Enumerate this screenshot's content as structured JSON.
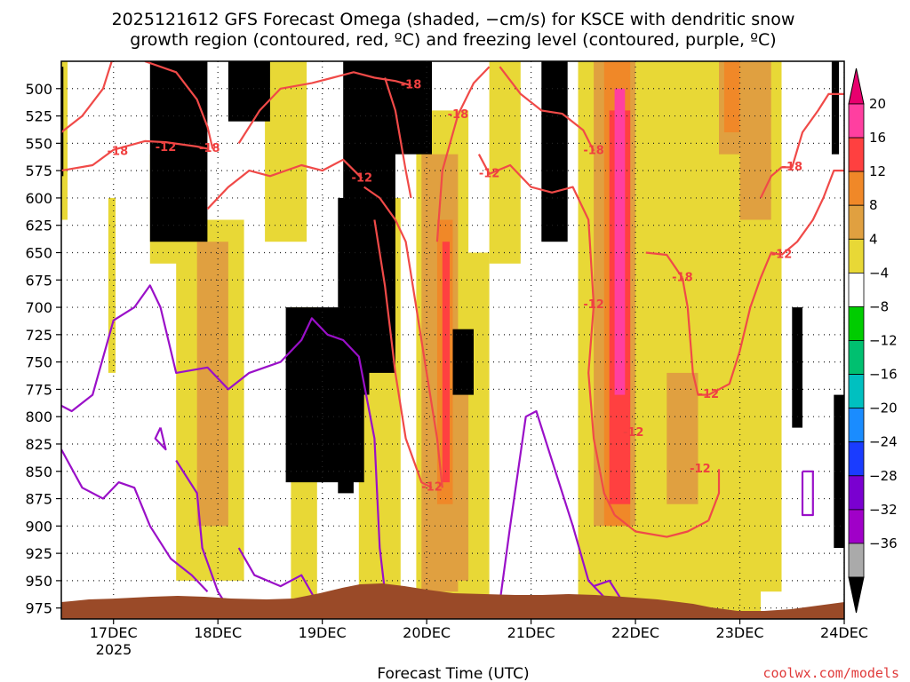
{
  "chart_data": {
    "type": "heatmap",
    "title_lines": [
      "2025121612 GFS Forecast Omega (shaded, −cm/s) for KSCE with dendritic snow",
      "growth region (contoured, red, ºC) and freezing level (contoured, purple, ºC)"
    ],
    "xlabel": "Forecast Time (UTC)",
    "x_ticks": [
      "17DEC",
      "18DEC",
      "19DEC",
      "20DEC",
      "21DEC",
      "22DEC",
      "23DEC",
      "24DEC"
    ],
    "x_year_label": "2025",
    "x_range_days": [
      16.5,
      24.0
    ],
    "y_ticks": [
      500,
      525,
      550,
      575,
      600,
      625,
      650,
      675,
      700,
      725,
      750,
      775,
      800,
      825,
      850,
      875,
      900,
      925,
      950,
      975
    ],
    "y_range_hpa": [
      475,
      985
    ],
    "colorbar_labels": [
      "20",
      "16",
      "12",
      "8",
      "4",
      "−4",
      "−8",
      "−12",
      "−16",
      "−20",
      "−24",
      "−28",
      "−32",
      "−36"
    ],
    "colorbar_colors": [
      "#ff3fa0",
      "#ff4040",
      "#f08828",
      "#e0a040",
      "#e8d836",
      "#ffffff",
      "#00cc00",
      "#00c070",
      "#00c0c0",
      "#1a8cff",
      "#1a3cff",
      "#7a00d0",
      "#a000c8",
      "#aaaaaa"
    ],
    "colorbar_top_color": "#e8006e",
    "colorbar_bottom_color": "#000000",
    "contour_labels_dgz": [
      {
        "text": "-18",
        "x": 17.04,
        "p": 558
      },
      {
        "text": "-12",
        "x": 17.5,
        "p": 554
      },
      {
        "text": "-18",
        "x": 17.92,
        "p": 555
      },
      {
        "text": "-12",
        "x": 19.38,
        "p": 582
      },
      {
        "text": "-18",
        "x": 19.85,
        "p": 497
      },
      {
        "text": "-18",
        "x": 20.3,
        "p": 524
      },
      {
        "text": "-12",
        "x": 20.6,
        "p": 578
      },
      {
        "text": "-18",
        "x": 21.6,
        "p": 557
      },
      {
        "text": "-12",
        "x": 21.6,
        "p": 698
      },
      {
        "text": "-12",
        "x": 20.05,
        "p": 865
      },
      {
        "text": "-12",
        "x": 21.98,
        "p": 815
      },
      {
        "text": "-18",
        "x": 22.45,
        "p": 673
      },
      {
        "text": "-12",
        "x": 22.7,
        "p": 780
      },
      {
        "text": "-12",
        "x": 22.62,
        "p": 848
      },
      {
        "text": "-18",
        "x": 23.5,
        "p": 572
      },
      {
        "text": "-12",
        "x": 23.4,
        "p": 652
      }
    ],
    "credit": "coolwx.com/models"
  }
}
